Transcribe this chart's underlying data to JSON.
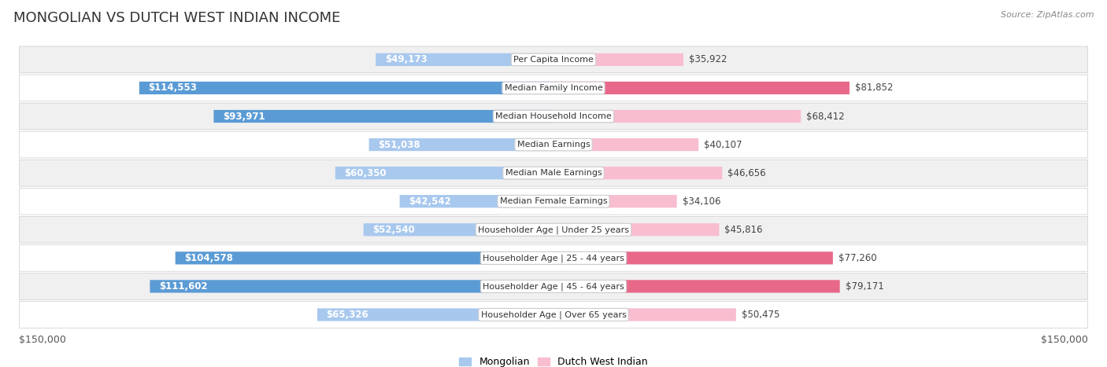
{
  "title": "MONGOLIAN VS DUTCH WEST INDIAN INCOME",
  "source": "Source: ZipAtlas.com",
  "categories": [
    "Per Capita Income",
    "Median Family Income",
    "Median Household Income",
    "Median Earnings",
    "Median Male Earnings",
    "Median Female Earnings",
    "Householder Age | Under 25 years",
    "Householder Age | 25 - 44 years",
    "Householder Age | 45 - 64 years",
    "Householder Age | Over 65 years"
  ],
  "mongolian_values": [
    49173,
    114553,
    93971,
    51038,
    60350,
    42542,
    52540,
    104578,
    111602,
    65326
  ],
  "dutch_values": [
    35922,
    81852,
    68412,
    40107,
    46656,
    34106,
    45816,
    77260,
    79171,
    50475
  ],
  "mongolian_labels": [
    "$49,173",
    "$114,553",
    "$93,971",
    "$51,038",
    "$60,350",
    "$42,542",
    "$52,540",
    "$104,578",
    "$111,602",
    "$65,326"
  ],
  "dutch_labels": [
    "$35,922",
    "$81,852",
    "$68,412",
    "$40,107",
    "$46,656",
    "$34,106",
    "$45,816",
    "$77,260",
    "$79,171",
    "$50,475"
  ],
  "max_value": 150000,
  "mongolian_color_light": "#a8c8ee",
  "mongolian_color_dark": "#5b9bd5",
  "dutch_color_light": "#f9bdd0",
  "dutch_color_dark": "#e8688a",
  "bar_height": 0.45,
  "row_bg_color": "#f0f0f0",
  "row_bg_alt": "#ffffff",
  "legend_mongolian": "Mongolian",
  "legend_dutch": "Dutch West Indian",
  "xlabel_left": "$150,000",
  "xlabel_right": "$150,000",
  "background_color": "#ffffff",
  "label_fontsize": 8.5,
  "category_fontsize": 8.0,
  "title_fontsize": 13,
  "axis_label_fontsize": 9,
  "dark_threshold": 70000
}
